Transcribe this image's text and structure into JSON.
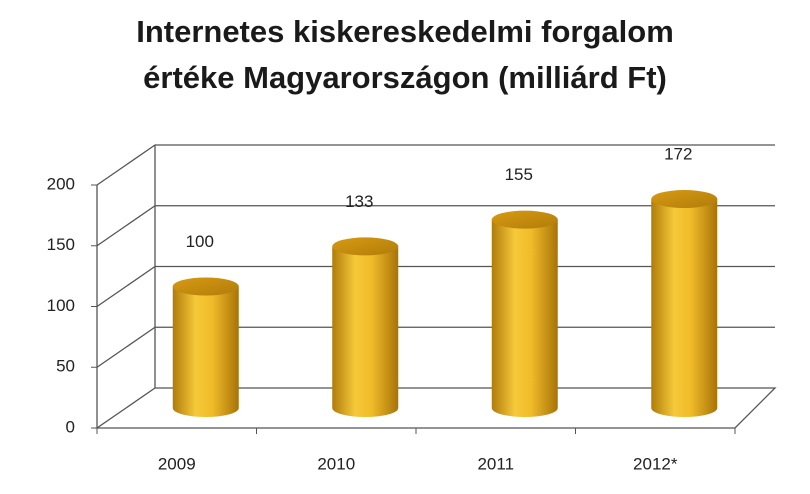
{
  "chart_data": {
    "type": "bar",
    "title": [
      "Internetes kiskereskedelmi forgalom",
      "értéke Magyarországon (milliárd Ft)"
    ],
    "categories": [
      "2009",
      "2010",
      "2011",
      "2012*"
    ],
    "values": [
      100,
      133,
      155,
      172
    ],
    "color": "#e8b020",
    "ylim": [
      0,
      200
    ],
    "yticks": [
      0,
      50,
      100,
      150,
      200
    ],
    "grid": true
  }
}
